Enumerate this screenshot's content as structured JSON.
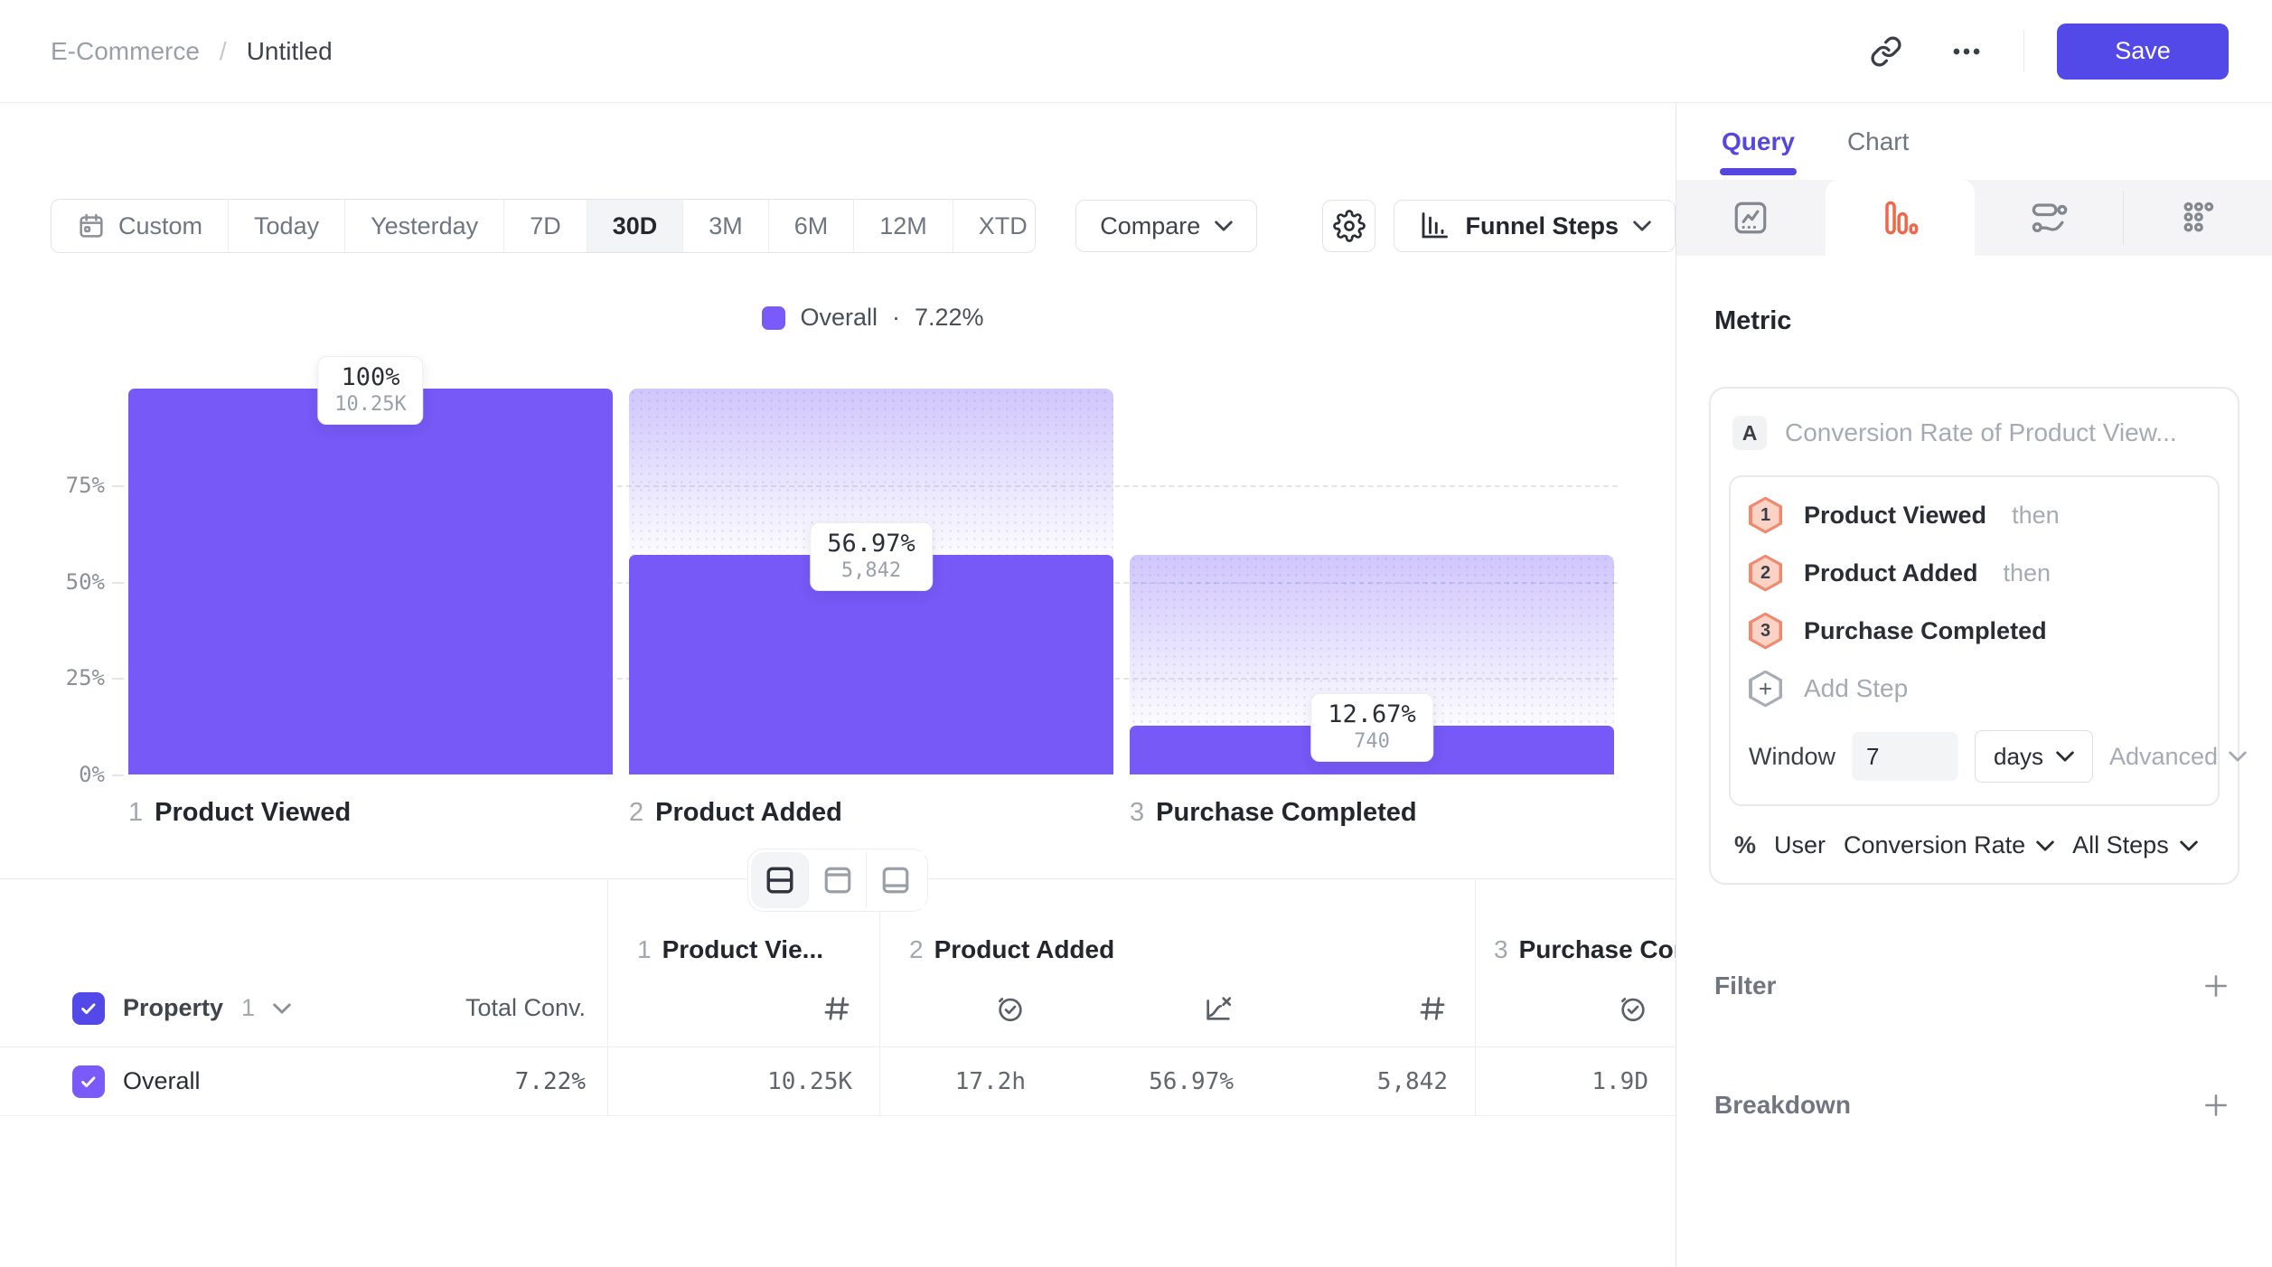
{
  "topbar": {
    "breadcrumb": {
      "project": "E-Commerce",
      "separator": "/",
      "title": "Untitled"
    },
    "save_label": "Save"
  },
  "controls": {
    "date_ranges": [
      {
        "label": "Custom",
        "icon": "calendar"
      },
      {
        "label": "Today"
      },
      {
        "label": "Yesterday"
      },
      {
        "label": "7D"
      },
      {
        "label": "30D",
        "active": true
      },
      {
        "label": "3M"
      },
      {
        "label": "6M"
      },
      {
        "label": "12M"
      },
      {
        "label": "XTD",
        "dropdown": true
      }
    ],
    "compare_label": "Compare",
    "chart_type_label": "Funnel Steps"
  },
  "chart_data": {
    "type": "bar",
    "subtype": "funnel-steps",
    "legend": {
      "name": "Overall",
      "separator": "·",
      "value_label": "7.22%"
    },
    "ylim": [
      0,
      100
    ],
    "y_ticks": [
      {
        "label": "75%",
        "pct": 75
      },
      {
        "label": "50%",
        "pct": 50
      },
      {
        "label": "25%",
        "pct": 25
      },
      {
        "label": "0%",
        "pct": 0
      }
    ],
    "steps": [
      {
        "index": "1",
        "name": "Product Viewed",
        "conversion_pct": 100,
        "pct_label": "100%",
        "count": 10250,
        "count_label": "10.25K"
      },
      {
        "index": "2",
        "name": "Product Added",
        "conversion_pct": 56.97,
        "pct_label": "56.97%",
        "count": 5842,
        "count_label": "5,842"
      },
      {
        "index": "3",
        "name": "Purchase Completed",
        "conversion_pct": 12.67,
        "pct_label": "12.67%",
        "count": 740,
        "count_label": "740"
      }
    ],
    "colors": {
      "bar": "#7659F6",
      "legend_swatch": "#7A5AF8"
    },
    "grid": "dashed-horizontal",
    "legend_position": "top-center"
  },
  "view_toggle": {
    "options": [
      "split-view",
      "chart-only",
      "table-only"
    ],
    "active": "split-view"
  },
  "table": {
    "property": {
      "label": "Property",
      "number": "1"
    },
    "total_conv_header": "Total Conv.",
    "step_columns": [
      {
        "index": "1",
        "title": "Product Vie...",
        "metrics": [
          "count"
        ]
      },
      {
        "index": "2",
        "title": "Product Added",
        "metrics": [
          "median-time",
          "conversion",
          "count"
        ]
      },
      {
        "index": "3",
        "title": "Purchase Completed",
        "metrics": [
          "median-time"
        ]
      }
    ],
    "row": {
      "name": "Overall",
      "total_conv": "7.22%",
      "values": [
        "10.25K",
        "17.2h",
        "56.97%",
        "5,842",
        "1.9D"
      ]
    }
  },
  "panel": {
    "tabs": [
      {
        "label": "Query",
        "active": true
      },
      {
        "label": "Chart",
        "active": false
      }
    ],
    "chart_types": [
      "line-chart",
      "funnel-bars",
      "flow",
      "more-dots"
    ],
    "metric_heading": "Metric",
    "metric": {
      "badge": "A",
      "title": "Conversion Rate of Product View...",
      "steps": [
        {
          "n": "1",
          "name": "Product Viewed",
          "suffix": "then"
        },
        {
          "n": "2",
          "name": "Product Added",
          "suffix": "then"
        },
        {
          "n": "3",
          "name": "Purchase Completed",
          "suffix": ""
        }
      ],
      "add_step_label": "Add Step",
      "window": {
        "label": "Window",
        "value": "7",
        "unit": "days",
        "advanced_label": "Advanced"
      },
      "measure": {
        "icon": "%",
        "entity": "User",
        "metric": "Conversion Rate",
        "scope": "All Steps"
      }
    },
    "sections": [
      {
        "label": "Filter"
      },
      {
        "label": "Breakdown"
      }
    ]
  }
}
